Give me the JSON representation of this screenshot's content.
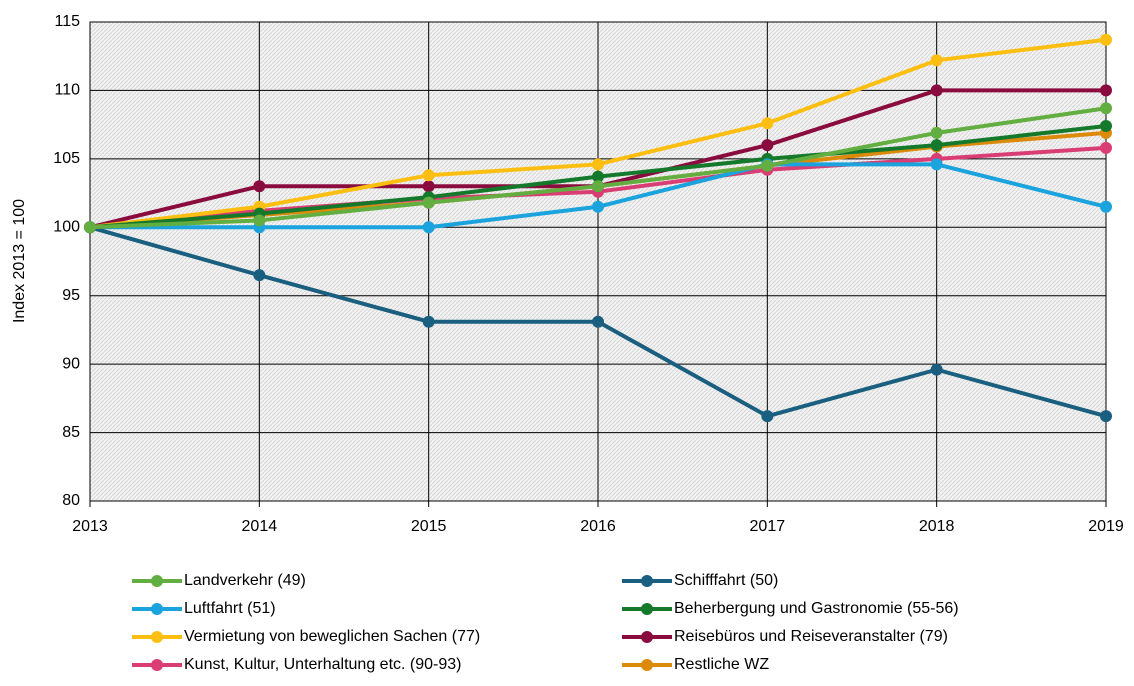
{
  "chart_data": {
    "type": "line",
    "y_label": "Index 2013 = 100",
    "categories": [
      "2013",
      "2014",
      "2015",
      "2016",
      "2017",
      "2018",
      "2019"
    ],
    "ylim": [
      80,
      115
    ],
    "yticks": [
      80,
      85,
      90,
      95,
      100,
      105,
      110,
      115
    ],
    "grid": true,
    "series": [
      {
        "name": "Landverkehr (49)",
        "color": "#62ae41",
        "values": [
          100,
          100.5,
          101.8,
          103,
          104.5,
          106.9,
          108.7
        ]
      },
      {
        "name": "Schifffahrt (50)",
        "color": "#1b5f80",
        "values": [
          100,
          96.5,
          93.1,
          93.1,
          86.2,
          89.6,
          86.2
        ]
      },
      {
        "name": "Luftfahrt (51)",
        "color": "#1aa3dc",
        "values": [
          100,
          100,
          100,
          101.5,
          104.6,
          104.6,
          101.5
        ]
      },
      {
        "name": "Beherbergung und Gastronomie (55-56)",
        "color": "#15792b",
        "values": [
          100,
          101,
          102.2,
          103.7,
          105,
          106,
          107.4
        ]
      },
      {
        "name": "Vermietung von beweglichen Sachen (77)",
        "color": "#fcbf11",
        "values": [
          100,
          101.5,
          103.8,
          104.6,
          107.6,
          112.2,
          113.7
        ]
      },
      {
        "name": "Reisebüros und Reiseveranstalter (79)",
        "color": "#8a0c3f",
        "values": [
          100,
          103,
          103,
          103,
          106,
          110,
          110
        ]
      },
      {
        "name": "Kunst, Kultur, Unterhaltung etc. (90-93)",
        "color": "#d93d74",
        "values": [
          100,
          101.2,
          102.1,
          102.6,
          104.2,
          105,
          105.8
        ]
      },
      {
        "name": "Restliche WZ",
        "color": "#dc8a0a",
        "values": [
          100,
          100.9,
          101.8,
          103,
          104.5,
          105.9,
          106.9
        ]
      }
    ]
  }
}
